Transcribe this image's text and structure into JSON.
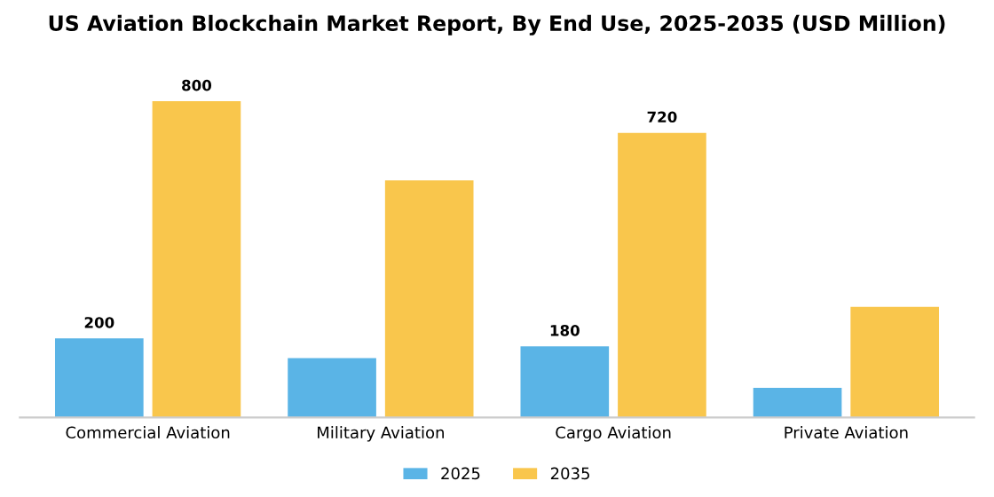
{
  "chart_data": {
    "type": "bar",
    "title": "US Aviation Blockchain Market Report, By End Use, 2025-2035 (USD Million)",
    "categories": [
      "Commercial Aviation",
      "Military Aviation",
      "Cargo Aviation",
      "Private Aviation"
    ],
    "series": [
      {
        "name": "2025",
        "color": "#5ab4e6",
        "values": [
          200,
          150,
          180,
          75
        ],
        "value_labels": [
          "200",
          null,
          "180",
          null
        ]
      },
      {
        "name": "2035",
        "color": "#f9c64c",
        "values": [
          800,
          600,
          720,
          280
        ],
        "value_labels": [
          "800",
          null,
          "720",
          null
        ]
      }
    ],
    "legend": "bottom",
    "grid": false
  }
}
